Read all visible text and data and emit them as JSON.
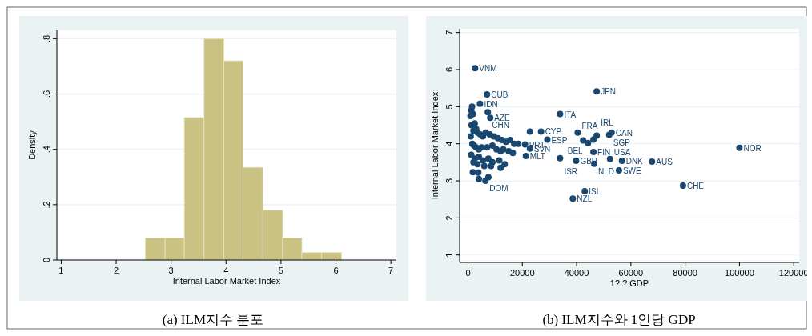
{
  "chart_data": [
    {
      "type": "histogram",
      "title": "(a) ILM지수 분포",
      "xlabel": "Internal Labor Market Index",
      "ylabel": "Density",
      "color": "#c9c283",
      "grid": "y",
      "bins": [
        2.53,
        2.89,
        3.24,
        3.6,
        3.96,
        4.31,
        4.67,
        5.03,
        5.38,
        5.74,
        6.1
      ],
      "values": [
        0.08,
        0.08,
        0.515,
        0.8,
        0.72,
        0.335,
        0.18,
        0.08,
        0.027,
        0.027
      ],
      "xlim": [
        0.95,
        7.1
      ],
      "xticks": [
        1,
        2,
        3,
        4,
        5,
        6,
        7
      ],
      "ylim": [
        0,
        0.83
      ],
      "yticks": [
        0,
        {
          "value": 0.2,
          "label": ".2"
        },
        {
          "value": 0.4,
          "label": ".4"
        },
        {
          "value": 0.6,
          "label": ".6"
        },
        {
          "value": 0.8,
          "label": ".8"
        }
      ]
    },
    {
      "type": "scatter",
      "title": "(b) ILM지수와 1인당 GDP",
      "xlabel": "1? ?  GDP",
      "ylabel": "Internal Labor Market Index",
      "color": "#1a476f",
      "marker": "circle",
      "grid": "y",
      "x": [
        2600,
        7000,
        4400,
        7300,
        8200,
        33900,
        47400,
        26900,
        22800,
        29200,
        40400,
        52900,
        52000,
        47400,
        42400,
        44200,
        46200,
        46200,
        22800,
        21000,
        21300,
        33900,
        39800,
        46500,
        52300,
        56700,
        67800,
        55600,
        100000,
        79200,
        43000,
        38600,
        6400,
        1500,
        1200,
        1800,
        900,
        2500,
        1300,
        3000,
        2000,
        3500,
        1000,
        4500,
        5500,
        6500,
        8000,
        9500,
        11000,
        12500,
        14000,
        15500,
        17000,
        18500,
        1600,
        2200,
        3000,
        4000,
        5000,
        7000,
        9000,
        10500,
        12000,
        13000,
        15000,
        16500,
        1200,
        2500,
        4000,
        5500,
        7500,
        9000,
        11500,
        13500,
        2000,
        3500,
        6000,
        8500,
        12000,
        1800,
        4000,
        3800,
        7500
      ],
      "values": [
        6.04,
        5.33,
        5.08,
        4.85,
        4.7,
        4.8,
        5.41,
        4.33,
        4.33,
        4.11,
        4.3,
        4.3,
        4.24,
        4.22,
        4.09,
        4.02,
        4.11,
        3.78,
        3.87,
        3.98,
        3.67,
        3.61,
        3.54,
        3.46,
        3.59,
        3.54,
        3.52,
        3.28,
        3.89,
        2.87,
        2.72,
        2.52,
        3.0,
        5.0,
        4.9,
        4.8,
        4.75,
        4.55,
        4.5,
        4.4,
        4.35,
        4.3,
        4.2,
        4.25,
        4.2,
        4.3,
        4.25,
        4.2,
        4.15,
        4.1,
        4.05,
        4.1,
        4.0,
        4.0,
        4.0,
        3.95,
        3.9,
        3.85,
        3.9,
        3.9,
        3.95,
        3.85,
        3.8,
        3.85,
        3.8,
        3.75,
        3.7,
        3.6,
        3.65,
        3.55,
        3.6,
        3.5,
        3.55,
        3.45,
        3.5,
        3.45,
        3.4,
        3.4,
        3.35,
        3.23,
        3.05,
        3.22,
        3.1
      ],
      "xlim": [
        -2500,
        122000
      ],
      "xticks": [
        0,
        20000,
        40000,
        60000,
        80000,
        100000,
        120000
      ],
      "ylim": [
        0.8,
        7.1
      ],
      "yticks": [
        1,
        2,
        3,
        4,
        5,
        6,
        7
      ],
      "annotations": [
        {
          "text": "VNM",
          "x": 2600,
          "y": 6.04
        },
        {
          "text": "CUB",
          "x": 7000,
          "y": 5.33
        },
        {
          "text": "IDN",
          "x": 4400,
          "y": 5.08
        },
        {
          "text": "CHN",
          "x": 7300,
          "y": 4.85
        },
        {
          "text": "AZE",
          "x": 8200,
          "y": 4.7
        },
        {
          "text": "ITA",
          "x": 33900,
          "y": 4.8
        },
        {
          "text": "JPN",
          "x": 47400,
          "y": 5.41
        },
        {
          "text": "CYP",
          "x": 26900,
          "y": 4.33
        },
        {
          "text": "ESP",
          "x": 29200,
          "y": 4.11
        },
        {
          "text": "FRA",
          "x": 40400,
          "y": 4.3
        },
        {
          "text": "CAN",
          "x": 52900,
          "y": 4.3
        },
        {
          "text": "SGP",
          "x": 52000,
          "y": 4.24
        },
        {
          "text": "IRL",
          "x": 47400,
          "y": 4.22
        },
        {
          "text": "BEL",
          "x": 44200,
          "y": 4.02
        },
        {
          "text": "FIN",
          "x": 46200,
          "y": 3.78
        },
        {
          "text": "SVN",
          "x": 22800,
          "y": 3.87
        },
        {
          "text": "PRT",
          "x": 21000,
          "y": 3.98
        },
        {
          "text": "MLT",
          "x": 21300,
          "y": 3.67
        },
        {
          "text": "ISR",
          "x": 33900,
          "y": 3.61
        },
        {
          "text": "GBR",
          "x": 39800,
          "y": 3.54
        },
        {
          "text": "NLD",
          "x": 46500,
          "y": 3.46
        },
        {
          "text": "USA",
          "x": 52300,
          "y": 3.59
        },
        {
          "text": "DNK",
          "x": 56700,
          "y": 3.54
        },
        {
          "text": "AUS",
          "x": 67800,
          "y": 3.52
        },
        {
          "text": "SWE",
          "x": 55600,
          "y": 3.28
        },
        {
          "text": "NOR",
          "x": 100000,
          "y": 3.89
        },
        {
          "text": "CHE",
          "x": 79200,
          "y": 2.87
        },
        {
          "text": "ISL",
          "x": 43000,
          "y": 2.72
        },
        {
          "text": "NZL",
          "x": 38600,
          "y": 2.52
        },
        {
          "text": "DOM",
          "x": 6400,
          "y": 3.0
        }
      ]
    }
  ]
}
